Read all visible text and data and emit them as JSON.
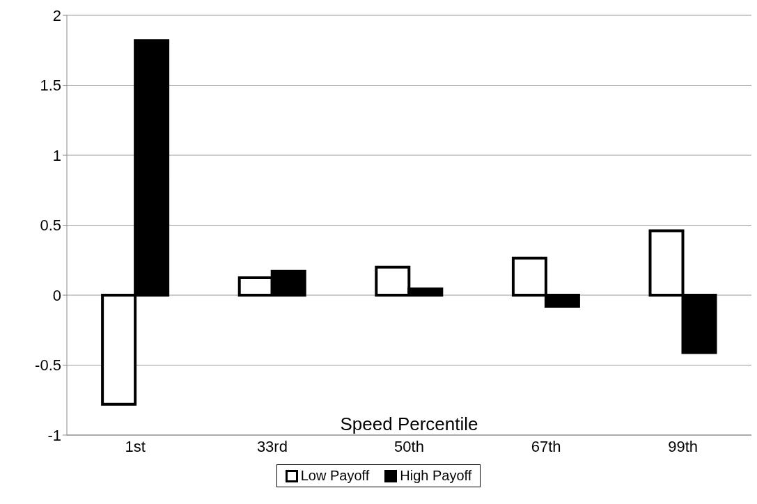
{
  "chart_data": {
    "type": "bar",
    "xlabel": "Speed Percentile",
    "categories": [
      "1st",
      "33rd",
      "50th",
      "67th",
      "99th"
    ],
    "series": [
      {
        "name": "Low Payoff",
        "color": "#ffffff",
        "values": [
          -0.78,
          0.125,
          0.2,
          0.265,
          0.46
        ]
      },
      {
        "name": "High Payoff",
        "color": "#000000",
        "values": [
          1.82,
          0.17,
          0.045,
          -0.08,
          -0.41
        ]
      }
    ],
    "ylim": [
      -1,
      2
    ],
    "yticks": [
      -1,
      -0.5,
      0,
      0.5,
      1,
      1.5,
      2
    ],
    "grid": "y",
    "legend": "bottom"
  }
}
